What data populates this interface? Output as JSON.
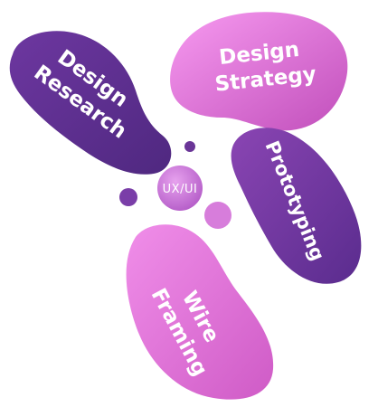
{
  "center": {
    "label": "UX/UI"
  },
  "petals": [
    {
      "key": "design-research",
      "lines": [
        "Design",
        "Research"
      ]
    },
    {
      "key": "design-strategy",
      "lines": [
        "Design",
        "Strategy"
      ]
    },
    {
      "key": "prototyping",
      "lines": [
        "Prototyping"
      ]
    },
    {
      "key": "wire-framing",
      "lines": [
        "Wire",
        "Framing"
      ]
    }
  ],
  "colors": {
    "purple_dark": "#5b2e8f",
    "purple_mid": "#7b3fa6",
    "pink_light": "#f590ee",
    "pink_mid": "#d45fc8",
    "center_bubble": "#c873d4"
  }
}
